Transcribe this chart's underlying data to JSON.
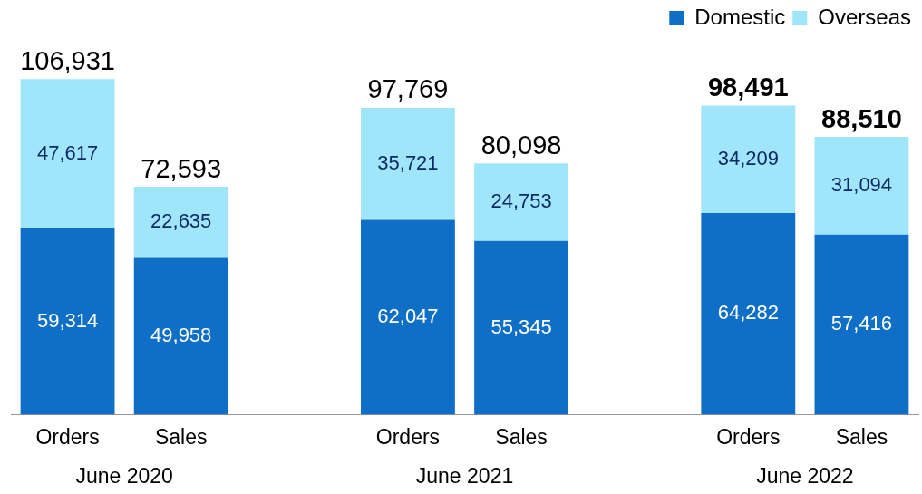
{
  "chart_data": {
    "type": "bar",
    "stacked": true,
    "legend": "top right",
    "grid": false,
    "categories": [
      "Orders",
      "Sales",
      null,
      "Orders",
      "Sales",
      null,
      "Orders",
      "Sales"
    ],
    "series": [
      {
        "name": "Domestic",
        "color": "#0f6fc6",
        "values": [
          59314,
          49958,
          null,
          62047,
          55345,
          null,
          64282,
          57416
        ],
        "value_labels": [
          "59,314",
          "49,958",
          null,
          "62,047",
          "55,345",
          null,
          "64,282",
          "57,416"
        ]
      },
      {
        "name": "Overseas",
        "color": "#a0e6fb",
        "values": [
          47617,
          22635,
          null,
          35721,
          24753,
          null,
          34209,
          31094
        ],
        "value_labels": [
          "47,617",
          "22,635",
          null,
          "35,721",
          "24,753",
          null,
          "34,209",
          "31,094"
        ]
      }
    ],
    "totals": [
      "106,931",
      "72,593",
      null,
      "97,769",
      "80,098",
      null,
      "98,491",
      "88,510"
    ],
    "annotations": [
      "June 2020",
      "June 2021",
      "June 2022"
    ]
  }
}
